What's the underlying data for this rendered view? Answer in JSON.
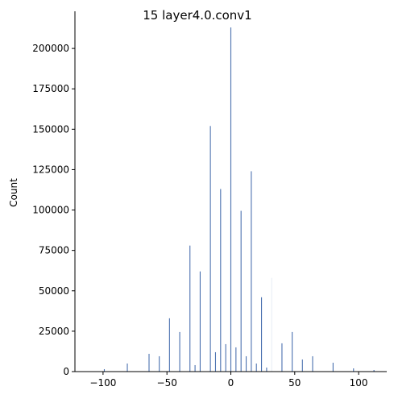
{
  "chart_data": {
    "type": "bar",
    "title": "15  layer4.0.conv1",
    "xlabel": "",
    "ylabel": "Count",
    "xlim": [
      -122,
      122
    ],
    "ylim": [
      0,
      223000
    ],
    "x_ticks": [
      -100,
      -50,
      0,
      50,
      100
    ],
    "x_tick_labels": [
      "−100",
      "−50",
      "0",
      "50",
      "100"
    ],
    "y_ticks": [
      0,
      25000,
      50000,
      75000,
      100000,
      125000,
      150000,
      175000,
      200000
    ],
    "y_tick_labels": [
      "0",
      "25000",
      "50000",
      "75000",
      "100000",
      "125000",
      "150000",
      "175000",
      "200000"
    ],
    "bar_width": 0.7,
    "bar_color": "#4c72b0",
    "x": [
      -99,
      -81,
      -64,
      -56,
      -48,
      -40,
      -32,
      -28,
      -24,
      -16,
      -12,
      -8,
      -4,
      0,
      4,
      8,
      12,
      16,
      20,
      24,
      28,
      32,
      40,
      48,
      56,
      64,
      80,
      96,
      112
    ],
    "values": [
      1500,
      5000,
      11000,
      9500,
      33000,
      24500,
      78000,
      4000,
      62000,
      152000,
      12000,
      113000,
      17000,
      213000,
      15000,
      99500,
      9500,
      124000,
      5000,
      46000,
      2500,
      58000,
      17500,
      24500,
      7500,
      9500,
      5500,
      2000,
      1000
    ],
    "faint": [
      false,
      false,
      false,
      false,
      false,
      false,
      false,
      false,
      false,
      false,
      false,
      false,
      false,
      false,
      false,
      false,
      false,
      false,
      false,
      false,
      false,
      true,
      false,
      false,
      false,
      false,
      false,
      false,
      false
    ]
  }
}
